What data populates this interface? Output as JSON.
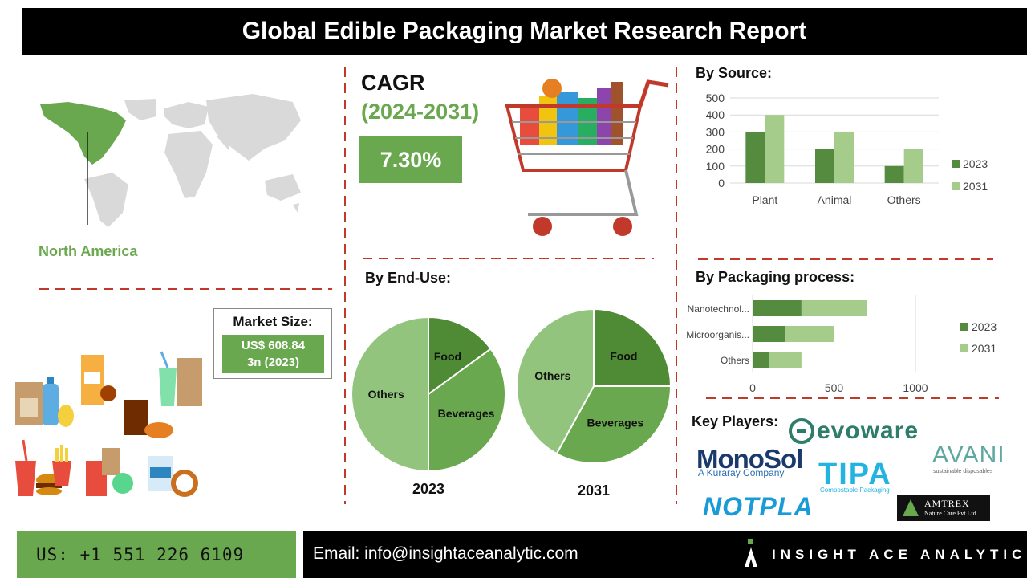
{
  "title": "Global Edible Packaging Market Research Report",
  "region": {
    "label": "North America"
  },
  "cagr": {
    "title": "CAGR",
    "years": "(2024-2031)",
    "value": "7.30%"
  },
  "market_size": {
    "title": "Market Size:",
    "value_line1": "US$ 608.84",
    "value_line2": "3n (2023)"
  },
  "sections": {
    "by_source": "By Source:",
    "by_end_use": "By End-Use:",
    "by_packaging_process": "By Packaging process:",
    "key_players": "Key Players:"
  },
  "key_players": {
    "monosol": "MonoSol",
    "monosol_sub": "A Kuraray Company",
    "evoware": "evoware",
    "tipa": "TIPA",
    "tipa_sub": "Compostable Packaging",
    "avani": "AVANI",
    "avani_sub": "sustainable disposables",
    "notpla": "NOTPLA",
    "amtrex": "AMTREX",
    "amtrex_sub": "Nature Care Pvt Ltd."
  },
  "footer": {
    "phone": "US: +1 551 226 6109",
    "email": "Email: info@insightaceanalytic.com",
    "brand": "INSIGHT ACE ANALYTIC"
  },
  "colors": {
    "green_dark": "#6aa84f",
    "green_mid": "#558b3e",
    "green_light": "#a6cc8c",
    "pie_light": "#93c47d",
    "pie_mid": "#6aa84f",
    "pie_dark": "#4f8a34",
    "divider": "#c0392b",
    "map_highlight": "#6aa84f",
    "map_grey": "#d9d9d9"
  },
  "chart_data": [
    {
      "id": "by_source",
      "type": "bar",
      "categories": [
        "Plant",
        "Animal",
        "Others"
      ],
      "series": [
        {
          "name": "2023",
          "values": [
            300,
            200,
            100
          ]
        },
        {
          "name": "2031",
          "values": [
            400,
            300,
            200
          ]
        }
      ],
      "yticks": [
        0,
        100,
        200,
        300,
        400,
        500
      ],
      "ylim": [
        0,
        500
      ],
      "grid": true,
      "legend": "right"
    },
    {
      "id": "by_packaging_process",
      "type": "bar",
      "orientation": "horizontal",
      "stacked": true,
      "categories": [
        "Nanotechnol...",
        "Microorganis...",
        "Others"
      ],
      "series": [
        {
          "name": "2023",
          "values": [
            300,
            200,
            100
          ]
        },
        {
          "name": "2031",
          "values": [
            400,
            300,
            200
          ]
        }
      ],
      "xticks": [
        0,
        500,
        1000
      ],
      "xlim": [
        0,
        1200
      ],
      "grid": true,
      "legend": "right"
    },
    {
      "id": "end_use_2023",
      "type": "pie",
      "title": "2023",
      "labels": [
        "Food",
        "Beverages",
        "Others"
      ],
      "values": [
        15,
        35,
        50
      ]
    },
    {
      "id": "end_use_2031",
      "type": "pie",
      "title": "2031",
      "labels": [
        "Food",
        "Beverages",
        "Others"
      ],
      "values": [
        25,
        33,
        42
      ]
    }
  ]
}
